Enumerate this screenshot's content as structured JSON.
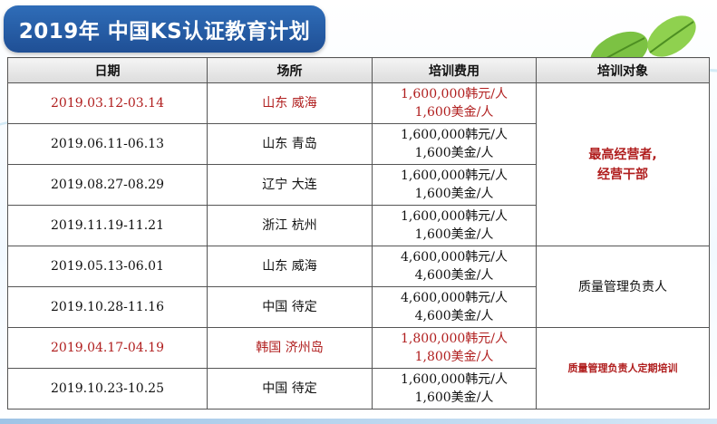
{
  "title": "2019年 中国KS认证教育计划",
  "table": {
    "headers": [
      "日期",
      "场所",
      "培训费用",
      "培训对象"
    ],
    "rows": [
      {
        "date": "2019.03.12-03.14",
        "place": "山东 威海",
        "fee_krw": "1,600,000韩元/人",
        "fee_usd": "1,600美金/人",
        "highlight": true
      },
      {
        "date": "2019.06.11-06.13",
        "place": "山东 青岛",
        "fee_krw": "1,600,000韩元/人",
        "fee_usd": "1,600美金/人",
        "highlight": false
      },
      {
        "date": "2019.08.27-08.29",
        "place": "辽宁 大连",
        "fee_krw": "1,600,000韩元/人",
        "fee_usd": "1,600美金/人",
        "highlight": false
      },
      {
        "date": "2019.11.19-11.21",
        "place": "浙江 杭州",
        "fee_krw": "1,600,000韩元/人",
        "fee_usd": "1,600美金/人",
        "highlight": false
      },
      {
        "date": "2019.05.13-06.01",
        "place": "山东 威海",
        "fee_krw": "4,600,000韩元/人",
        "fee_usd": "4,600美金/人",
        "highlight": false
      },
      {
        "date": "2019.10.28-11.16",
        "place": "中国 待定",
        "fee_krw": "4,600,000韩元/人",
        "fee_usd": "4,600美金/人",
        "highlight": false
      },
      {
        "date": "2019.04.17-04.19",
        "place": "韩国 济州岛",
        "fee_krw": "1,800,000韩元/人",
        "fee_usd": "1,800美金/人",
        "highlight": true
      },
      {
        "date": "2019.10.23-10.25",
        "place": "中国 待定",
        "fee_krw": "1,600,000韩元/人",
        "fee_usd": "1,600美金/人",
        "highlight": false
      }
    ],
    "targets": {
      "group1_line1": "最高经营者,",
      "group1_line2": "经营干部",
      "group2": "质量管理负责人",
      "group3": "质量管理负责人定期培训"
    }
  },
  "colors": {
    "title_bg": "#2a62ae",
    "highlight_text": "#b01e1e",
    "header_bg": "#e4e4e4"
  },
  "decoration": "green-leaf-icon"
}
